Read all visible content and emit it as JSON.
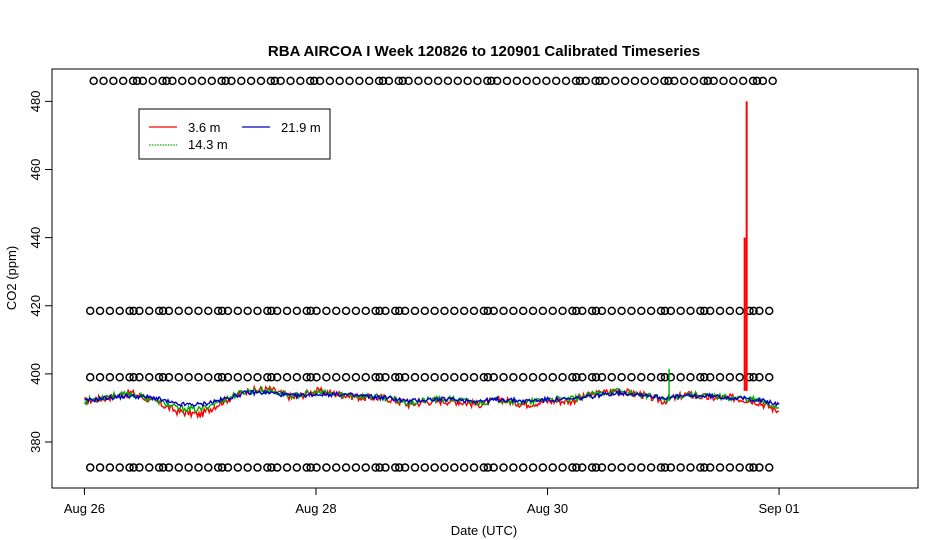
{
  "chart_data": {
    "type": "line",
    "title": "RBA AIRCOA I  Week 120826 to 120901  Calibrated Timeseries",
    "xlabel": "Date (UTC)",
    "ylabel": "CO2 (ppm)",
    "x_ticks": [
      "Aug 26",
      "Aug 28",
      "Aug 30",
      "Sep 01"
    ],
    "x_tick_days": [
      0,
      2,
      4,
      6
    ],
    "xlim_days": [
      -0.28,
      7.2
    ],
    "y_ticks": [
      380,
      400,
      420,
      440,
      460,
      480
    ],
    "ylim": [
      366.5,
      489.5
    ],
    "grid": false,
    "legend_position": "top-left",
    "series": [
      {
        "name": "3.6 m",
        "color": "#ff0000",
        "x": [
          0.0,
          0.2,
          0.4,
          0.6,
          0.8,
          1.0,
          1.2,
          1.4,
          1.6,
          1.8,
          2.0,
          2.2,
          2.4,
          2.6,
          2.8,
          3.0,
          3.2,
          3.4,
          3.6,
          3.8,
          4.0,
          4.2,
          4.4,
          4.6,
          4.8,
          5.0,
          5.2,
          5.4,
          5.6,
          5.8,
          6.0
        ],
        "y": [
          392,
          393,
          394.5,
          392,
          389,
          388,
          392,
          395,
          395.5,
          393,
          395,
          394,
          393,
          393,
          391,
          392,
          392,
          391,
          392.5,
          391,
          392,
          392,
          394,
          395,
          394,
          392,
          394,
          393,
          393,
          392,
          389
        ]
      },
      {
        "name": "14.3 m",
        "color": "#00aa00",
        "x": [
          0.0,
          0.2,
          0.4,
          0.6,
          0.8,
          1.0,
          1.2,
          1.4,
          1.6,
          1.8,
          2.0,
          2.2,
          2.4,
          2.6,
          2.8,
          3.0,
          3.2,
          3.4,
          3.6,
          3.8,
          4.0,
          4.2,
          4.4,
          4.6,
          4.8,
          5.0,
          5.2,
          5.4,
          5.6,
          5.8,
          6.0
        ],
        "y": [
          392,
          393.5,
          394,
          392.5,
          390,
          389.5,
          392.5,
          395,
          395,
          393.5,
          394.5,
          394,
          393.5,
          393,
          391.5,
          392.5,
          392.5,
          391.5,
          392.5,
          391.5,
          392.5,
          392.5,
          394,
          395,
          394,
          392.5,
          394,
          393.5,
          393,
          392.5,
          390
        ]
      },
      {
        "name": "21.9 m",
        "color": "#0000cc",
        "x": [
          0.0,
          0.2,
          0.4,
          0.6,
          0.8,
          1.0,
          1.2,
          1.4,
          1.6,
          1.8,
          2.0,
          2.2,
          2.4,
          2.6,
          2.8,
          3.0,
          3.2,
          3.4,
          3.6,
          3.8,
          4.0,
          4.2,
          4.4,
          4.6,
          4.8,
          5.0,
          5.2,
          5.4,
          5.6,
          5.8,
          6.0
        ],
        "y": [
          392,
          393,
          393.5,
          393,
          391,
          391,
          392.5,
          394.5,
          394.5,
          393.5,
          394,
          394,
          393.5,
          393,
          392,
          392.5,
          392.5,
          392,
          392.5,
          392,
          392.5,
          392.5,
          393.5,
          394.5,
          394,
          393,
          393.5,
          393.5,
          393,
          392.5,
          391
        ]
      }
    ],
    "spike_3_6m": {
      "x": 5.72,
      "y": [
        395,
        440,
        480
      ]
    },
    "spike_14_3m": {
      "x": 5.05,
      "y": 401.5
    },
    "calibration_levels": [
      372.5,
      399,
      418.5,
      486
    ],
    "calibration_start_days": [
      0.05,
      0.05,
      0.05,
      0.08
    ],
    "calibration_end_days": 5.98,
    "calibration_spacing_days": 0.085
  }
}
